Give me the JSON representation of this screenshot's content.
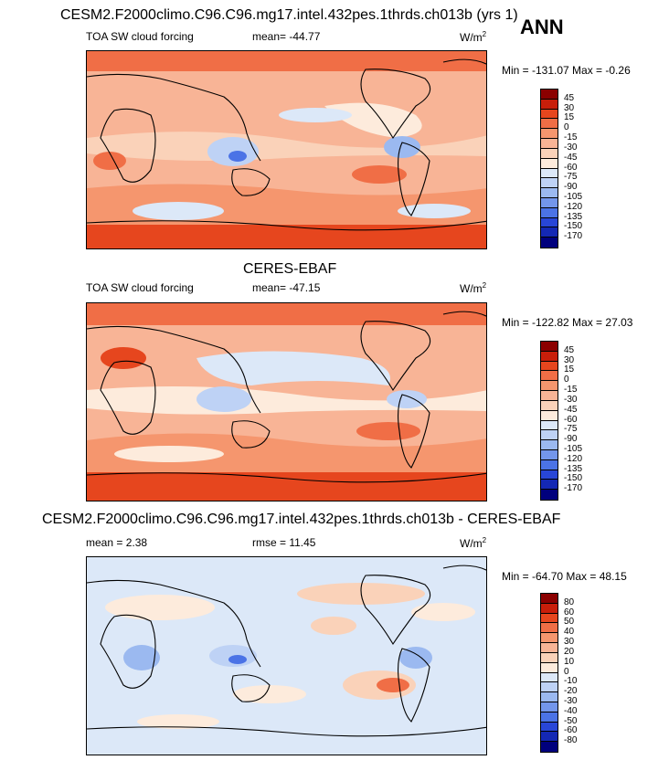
{
  "main_title": "CESM2.F2000climo.C96.C96.mg17.intel.432pes.1thrds.ch013b (yrs 1)",
  "season": "ANN",
  "panels": [
    {
      "id": "model",
      "heading": "",
      "left_label": "TOA SW cloud forcing",
      "center_label": "mean= -44.77",
      "units": "W/m",
      "units_sup": "2",
      "minmax": "Min = -131.07 Max =  -0.26",
      "colorbar_levels": [
        "45",
        "30",
        "15",
        "0",
        "-15",
        "-30",
        "-45",
        "-60",
        "-75",
        "-90",
        "-105",
        "-120",
        "-135",
        "-150",
        "-170"
      ],
      "colorbar_colors": [
        "#8b0000",
        "#c81e0a",
        "#e6461e",
        "#f06e46",
        "#f5966e",
        "#f8b496",
        "#fad2b9",
        "#fdebdc",
        "#dce8f8",
        "#bed2f5",
        "#9bb9f0",
        "#7396eb",
        "#4b73e6",
        "#2846d7",
        "#1428b4",
        "#00007d"
      ]
    },
    {
      "id": "obs",
      "heading": "CERES-EBAF",
      "left_label": "TOA SW cloud forcing",
      "center_label": "mean= -47.15",
      "units": "W/m",
      "units_sup": "2",
      "minmax": "Min = -122.82 Max =  27.03",
      "colorbar_levels": [
        "45",
        "30",
        "15",
        "0",
        "-15",
        "-30",
        "-45",
        "-60",
        "-75",
        "-90",
        "-105",
        "-120",
        "-135",
        "-150",
        "-170"
      ],
      "colorbar_colors": [
        "#8b0000",
        "#c81e0a",
        "#e6461e",
        "#f06e46",
        "#f5966e",
        "#f8b496",
        "#fad2b9",
        "#fdebdc",
        "#dce8f8",
        "#bed2f5",
        "#9bb9f0",
        "#7396eb",
        "#4b73e6",
        "#2846d7",
        "#1428b4",
        "#00007d"
      ]
    },
    {
      "id": "diff",
      "heading": "CESM2.F2000climo.C96.C96.mg17.intel.432pes.1thrds.ch013b - CERES-EBAF",
      "left_label": "mean =   2.38",
      "center_label": "rmse =  11.45",
      "units": "W/m",
      "units_sup": "2",
      "minmax": "Min = -64.70 Max =  48.15",
      "colorbar_levels": [
        "80",
        "60",
        "50",
        "40",
        "30",
        "20",
        "10",
        "0",
        "-10",
        "-20",
        "-30",
        "-40",
        "-50",
        "-60",
        "-80"
      ],
      "colorbar_colors": [
        "#8b0000",
        "#c81e0a",
        "#e6461e",
        "#f06e46",
        "#f5966e",
        "#f8b496",
        "#fad2b9",
        "#fdebdc",
        "#dce8f8",
        "#bed2f5",
        "#9bb9f0",
        "#7396eb",
        "#4b73e6",
        "#2846d7",
        "#1428b4",
        "#00007d"
      ]
    }
  ]
}
